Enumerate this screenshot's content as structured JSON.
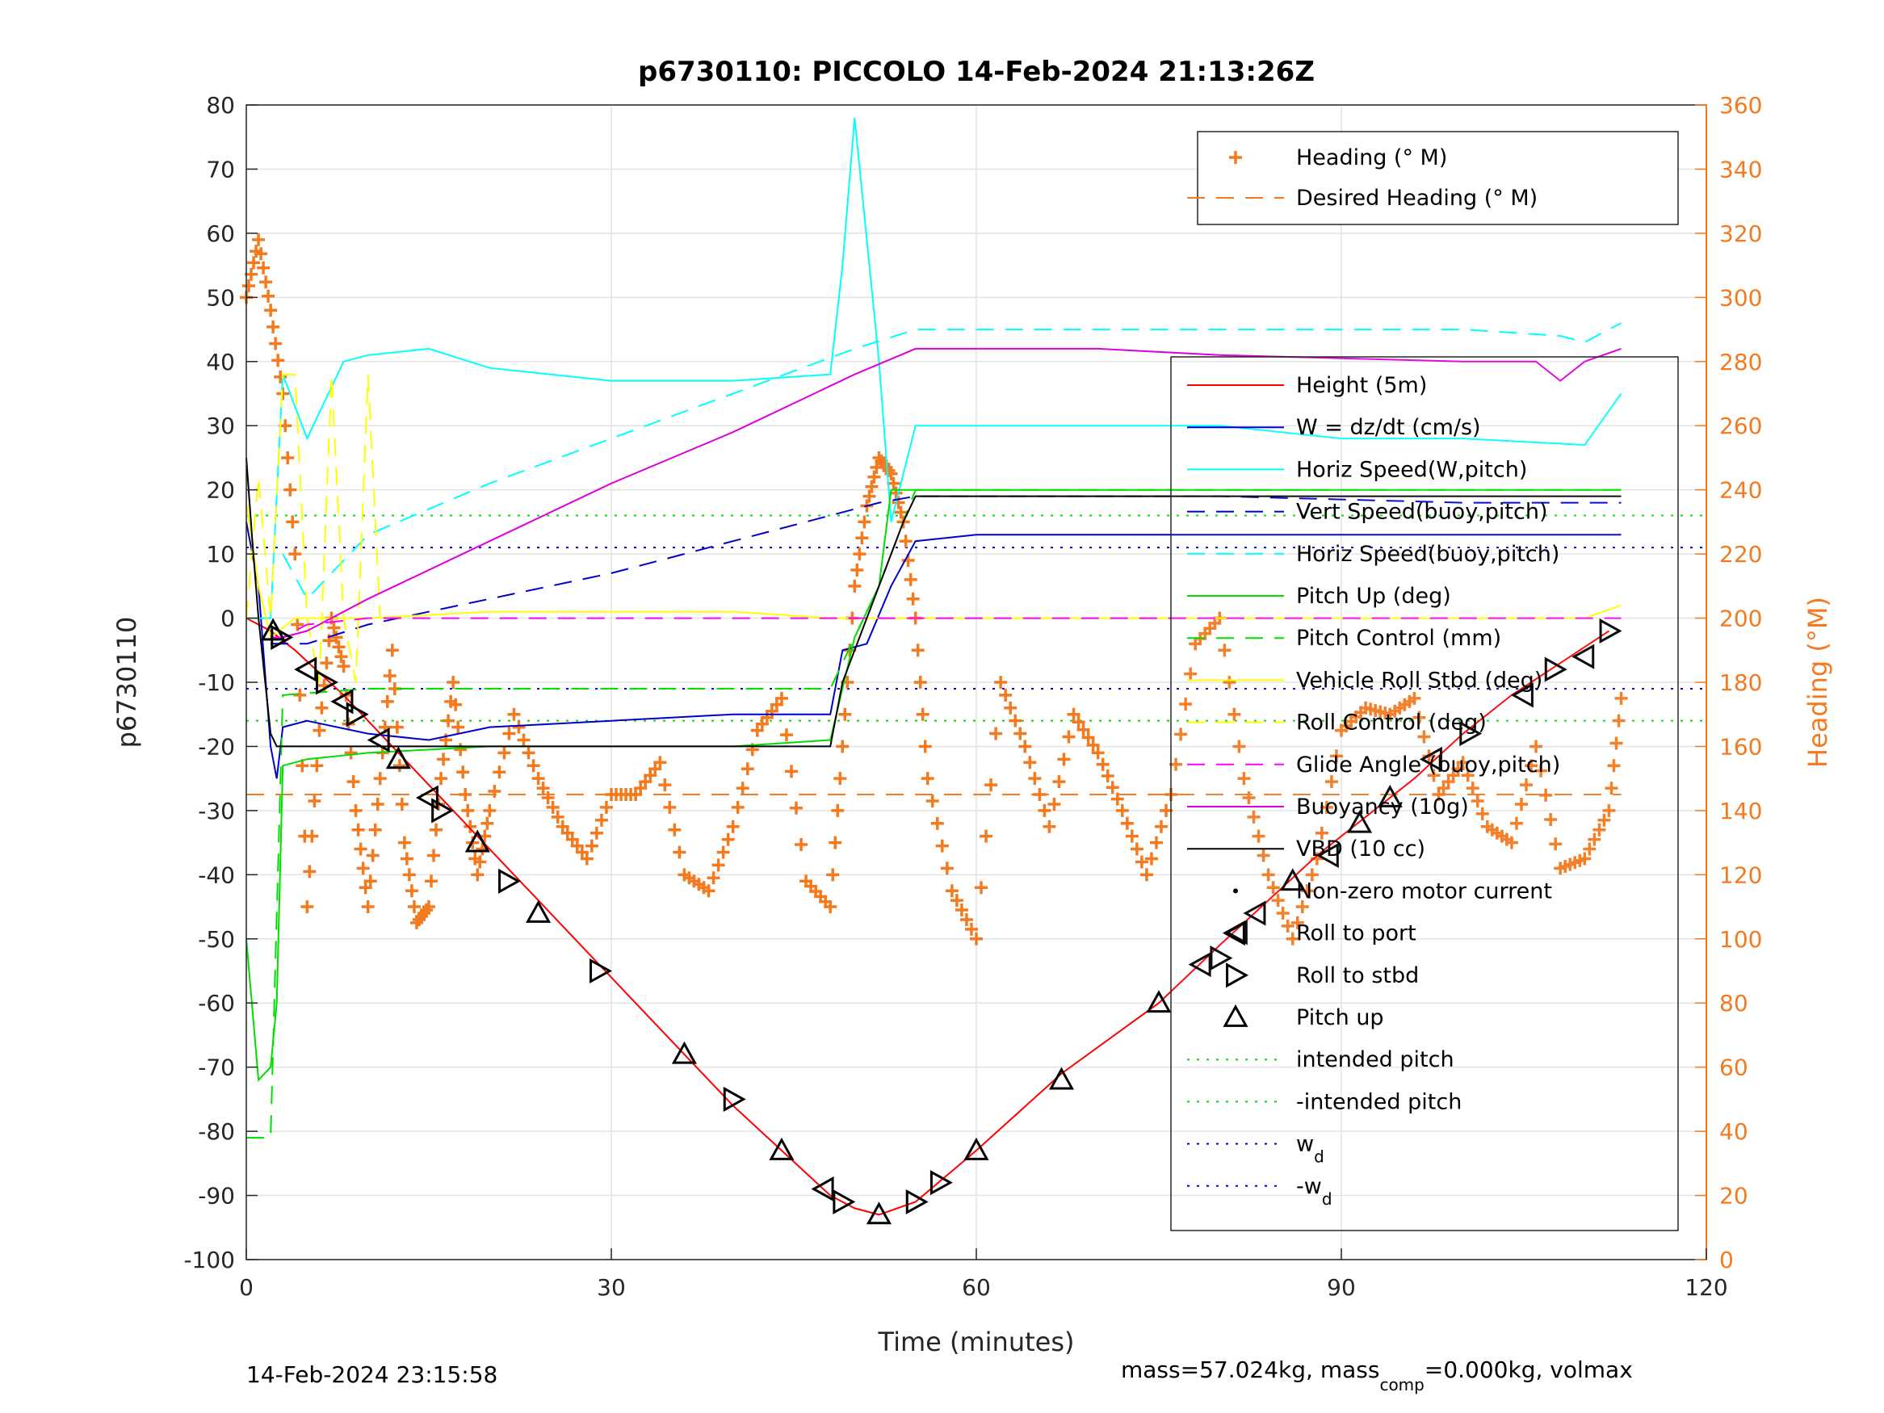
{
  "title": "p6730110: PICCOLO 14-Feb-2024 21:13:26Z",
  "footer_left": "14-Feb-2024 23:15:58",
  "footer_right": {
    "part1": "mass=57.024kg, mass",
    "sub1": "comp",
    "part2": "=0.000kg, volmax"
  },
  "colors": {
    "height": "#ff0000",
    "w": "#0000cc",
    "horiz_speed": "#00ffff",
    "vert_speed_buoy": "#0000cc",
    "pitch": "#00dd00",
    "roll": "#ffff00",
    "glide": "#ff00ff",
    "buoyancy": "#dd00dd",
    "vbd": "#000000",
    "heading": "#f47a20",
    "intended_pitch": "#00dd00",
    "wd": "#0000cc"
  },
  "chart_data": {
    "type": "line",
    "xlabel": "Time (minutes)",
    "ylabel": "p6730110",
    "ylabel_right": "Heading (°M)",
    "xlim": [
      0,
      120
    ],
    "ylim": [
      -100,
      80
    ],
    "ylim_right": [
      0,
      360
    ],
    "xticks": [
      0,
      30,
      60,
      90,
      120
    ],
    "yticks": [
      -100,
      -90,
      -80,
      -70,
      -60,
      -50,
      -40,
      -30,
      -20,
      -10,
      0,
      10,
      20,
      30,
      40,
      50,
      60,
      70,
      80
    ],
    "yticks_right": [
      0,
      20,
      40,
      60,
      80,
      100,
      120,
      140,
      160,
      180,
      200,
      220,
      240,
      260,
      280,
      300,
      320,
      340,
      360
    ],
    "grid": true,
    "legend_heading_placement": "top-right",
    "legend_main_placement": "right",
    "legend_heading": [
      {
        "label": "Heading (° M)",
        "key": "heading",
        "style": "plus"
      },
      {
        "label": "Desired Heading (° M)",
        "key": "heading",
        "style": "dash"
      }
    ],
    "legend_main": [
      {
        "label": "Height (5m)",
        "key": "height",
        "style": "solid"
      },
      {
        "label": "W = dz/dt (cm/s)",
        "key": "w",
        "style": "solid"
      },
      {
        "label": "Horiz Speed(W,pitch)",
        "key": "horiz_speed",
        "style": "solid"
      },
      {
        "label": "Vert Speed(buoy,pitch)",
        "key": "vert_speed_buoy",
        "style": "dash"
      },
      {
        "label": "Horiz Speed(buoy,pitch)",
        "key": "horiz_speed",
        "style": "dash"
      },
      {
        "label": "Pitch Up (deg)",
        "key": "pitch",
        "style": "solid"
      },
      {
        "label": "Pitch Control (mm)",
        "key": "pitch",
        "style": "dash"
      },
      {
        "label": "Vehicle Roll Stbd (deg)",
        "key": "roll",
        "style": "solid"
      },
      {
        "label": "Roll Control (deg)",
        "key": "roll",
        "style": "dash"
      },
      {
        "label": "Glide Angle (buoy,pitch)",
        "key": "glide",
        "style": "dash"
      },
      {
        "label": "Buoyancy (10g)",
        "key": "buoyancy",
        "style": "solid"
      },
      {
        "label": "VBD (10 cc)",
        "key": "vbd",
        "style": "solid"
      },
      {
        "label": "Non-zero motor current",
        "key": "vbd",
        "style": "dot"
      },
      {
        "label": "Roll to port",
        "key": "vbd",
        "style": "tri-left"
      },
      {
        "label": "Roll to stbd",
        "key": "vbd",
        "style": "tri-right"
      },
      {
        "label": "Pitch up",
        "key": "vbd",
        "style": "tri-up"
      },
      {
        "label": "intended pitch",
        "key": "intended_pitch",
        "style": "dotted"
      },
      {
        "label": "-intended pitch",
        "key": "intended_pitch",
        "style": "dotted"
      },
      {
        "label": "w",
        "sub": "d",
        "key": "wd",
        "style": "dotted"
      },
      {
        "label": "-w",
        "sub": "d",
        "key": "wd",
        "style": "dotted"
      }
    ],
    "series": [
      {
        "key": "height",
        "x": [
          0,
          2,
          4,
          8,
          12,
          16,
          20,
          24,
          29,
          36,
          40,
          44,
          48,
          50,
          52,
          55,
          60,
          67,
          75,
          80,
          84,
          88,
          92,
          96,
          100,
          104,
          108,
          112
        ],
        "y": [
          0,
          -2,
          -5,
          -12,
          -20,
          -28,
          -36,
          -44,
          -54,
          -68,
          -76,
          -83,
          -90,
          -92,
          -93,
          -91,
          -83,
          -71,
          -60,
          -51,
          -44,
          -37,
          -31,
          -25,
          -18,
          -12,
          -7,
          -2
        ]
      },
      {
        "key": "w",
        "x": [
          0,
          1,
          2,
          2.5,
          3,
          5,
          10,
          15,
          20,
          30,
          40,
          48,
          49,
          51,
          53,
          55,
          60,
          70,
          80,
          90,
          100,
          110,
          113
        ],
        "y": [
          15,
          5,
          -20,
          -25,
          -17,
          -16,
          -18,
          -19,
          -17,
          -16,
          -15,
          -15,
          -5,
          -4,
          5,
          12,
          13,
          13,
          13,
          13,
          13,
          13,
          13
        ]
      },
      {
        "key": "horiz_speed",
        "x": [
          0,
          2,
          3,
          5,
          8,
          10,
          15,
          20,
          30,
          40,
          48,
          49,
          50,
          52,
          53,
          55,
          60,
          70,
          80,
          90,
          100,
          110,
          113
        ],
        "y": [
          0,
          0,
          38,
          28,
          40,
          41,
          42,
          39,
          37,
          37,
          38,
          55,
          78,
          40,
          15,
          30,
          30,
          30,
          30,
          28,
          28,
          27,
          35
        ]
      },
      {
        "key": "vert_speed_buoy",
        "dash": "22 14",
        "x": [
          2,
          5,
          10,
          20,
          30,
          40,
          48,
          52,
          55,
          60,
          80,
          100,
          113
        ],
        "y": [
          -4,
          -4,
          -1,
          3,
          7,
          12,
          16,
          18,
          19,
          19,
          19,
          18,
          18
        ]
      },
      {
        "key": "horiz_speed",
        "dash": "22 14",
        "x": [
          3,
          5,
          10,
          20,
          30,
          40,
          50,
          55,
          60,
          80,
          100,
          108,
          110,
          113
        ],
        "y": [
          10,
          3,
          13,
          21,
          28,
          35,
          42,
          45,
          45,
          45,
          45,
          44,
          43,
          46
        ]
      },
      {
        "key": "pitch",
        "x": [
          0,
          1,
          2,
          2.5,
          3,
          5,
          10,
          20,
          30,
          40,
          48,
          50,
          52,
          53,
          55,
          60,
          80,
          100,
          110,
          113
        ],
        "y": [
          -50,
          -72,
          -70,
          -60,
          -23,
          -22,
          -21,
          -20,
          -20,
          -20,
          -19,
          -3,
          5,
          20,
          20,
          20,
          20,
          20,
          20,
          20
        ]
      },
      {
        "key": "pitch",
        "dash": "22 14",
        "x": [
          0,
          2,
          3,
          10,
          20,
          30,
          40,
          48,
          50,
          52,
          55,
          60,
          80,
          100,
          113
        ],
        "y": [
          -81,
          -81,
          -12,
          -11,
          -11,
          -11,
          -11,
          -11,
          -3,
          5,
          20,
          20,
          20,
          20,
          20
        ]
      },
      {
        "key": "roll",
        "x": [
          0,
          1,
          2,
          4,
          6,
          10,
          20,
          30,
          40,
          48,
          52,
          56,
          70,
          80,
          90,
          100,
          110,
          113
        ],
        "y": [
          18,
          5,
          -3,
          0,
          0,
          0,
          1,
          1,
          1,
          0,
          0,
          0,
          0,
          0,
          0,
          0,
          0,
          2
        ]
      },
      {
        "key": "roll",
        "dash": "22 14",
        "x": [
          0,
          1,
          2,
          3,
          4,
          5,
          6,
          7,
          8,
          9,
          10,
          11
        ],
        "y": [
          0,
          22,
          0,
          38,
          38,
          0,
          -10,
          38,
          0,
          -10,
          38,
          0
        ]
      },
      {
        "key": "glide",
        "dash": "22 14",
        "x": [
          2,
          3,
          5,
          10,
          30,
          50,
          60,
          80,
          100,
          113
        ],
        "y": [
          -3,
          -3,
          -1,
          0,
          0,
          0,
          0,
          0,
          0,
          0
        ]
      },
      {
        "key": "buoyancy",
        "x": [
          3,
          5,
          10,
          20,
          30,
          40,
          50,
          55,
          60,
          70,
          80,
          100,
          106,
          108,
          110,
          113
        ],
        "y": [
          -3,
          -2,
          3,
          12,
          21,
          29,
          38,
          42,
          42,
          42,
          41,
          40,
          40,
          37,
          40,
          42
        ]
      },
      {
        "key": "vbd",
        "x": [
          0,
          0.5,
          1,
          2,
          2.5,
          5,
          10,
          20,
          30,
          40,
          48,
          49,
          50,
          52,
          54,
          55,
          60,
          80,
          100,
          110,
          113
        ],
        "y": [
          25,
          12,
          0,
          -18,
          -20,
          -20,
          -20,
          -20,
          -20,
          -20,
          -20,
          -10,
          -5,
          5,
          15,
          19,
          19,
          19,
          19,
          19,
          19
        ]
      }
    ],
    "reference_lines": [
      {
        "key": "intended_pitch",
        "y": 16
      },
      {
        "key": "intended_pitch",
        "y": -16
      },
      {
        "key": "wd",
        "y": 11
      },
      {
        "key": "wd",
        "y": -11
      }
    ],
    "desired_heading": {
      "value": 145,
      "xrange": [
        0,
        113
      ]
    },
    "heading_series": {
      "x": [
        0,
        1,
        2,
        3,
        4,
        5,
        6,
        7,
        8,
        9,
        10,
        11,
        12,
        13,
        14,
        15,
        16,
        17,
        18,
        19,
        20,
        22,
        24,
        26,
        28,
        30,
        32,
        34,
        36,
        38,
        40,
        42,
        44,
        46,
        48,
        49,
        50,
        51,
        52,
        53,
        54,
        55,
        56,
        58,
        60,
        62,
        64,
        66,
        68,
        70,
        72,
        74,
        76,
        78,
        80,
        82,
        84,
        86,
        88,
        90,
        92,
        94,
        96,
        98,
        100,
        102,
        104,
        106,
        108,
        110,
        112,
        113
      ],
      "y": [
        300,
        318,
        296,
        270,
        220,
        110,
        165,
        200,
        185,
        140,
        110,
        150,
        190,
        130,
        105,
        110,
        150,
        180,
        145,
        120,
        140,
        170,
        150,
        135,
        125,
        145,
        145,
        155,
        120,
        115,
        135,
        165,
        175,
        118,
        110,
        160,
        210,
        235,
        250,
        245,
        230,
        200,
        150,
        115,
        100,
        180,
        160,
        135,
        170,
        158,
        140,
        120,
        145,
        192,
        200,
        150,
        120,
        100,
        125,
        165,
        172,
        170,
        175,
        145,
        155,
        135,
        130,
        160,
        122,
        125,
        140,
        175
      ]
    },
    "markers": [
      {
        "x": 2.2,
        "y": -2,
        "type": "tri-up"
      },
      {
        "x": 2.8,
        "y": -3,
        "type": "tri-right"
      },
      {
        "x": 5,
        "y": -8,
        "type": "tri-left"
      },
      {
        "x": 6.5,
        "y": -10,
        "type": "tri-right"
      },
      {
        "x": 8,
        "y": -13,
        "type": "tri-left"
      },
      {
        "x": 9,
        "y": -15,
        "type": "tri-right"
      },
      {
        "x": 11,
        "y": -19,
        "type": "tri-left"
      },
      {
        "x": 12.5,
        "y": -22,
        "type": "tri-up"
      },
      {
        "x": 15,
        "y": -28,
        "type": "tri-left"
      },
      {
        "x": 16,
        "y": -30,
        "type": "tri-right"
      },
      {
        "x": 19,
        "y": -35,
        "type": "tri-up"
      },
      {
        "x": 21.5,
        "y": -41,
        "type": "tri-right"
      },
      {
        "x": 24,
        "y": -46,
        "type": "tri-up"
      },
      {
        "x": 29,
        "y": -55,
        "type": "tri-right"
      },
      {
        "x": 36,
        "y": -68,
        "type": "tri-up"
      },
      {
        "x": 40,
        "y": -75,
        "type": "tri-right"
      },
      {
        "x": 44,
        "y": -83,
        "type": "tri-up"
      },
      {
        "x": 47.5,
        "y": -89,
        "type": "tri-left"
      },
      {
        "x": 49,
        "y": -91,
        "type": "tri-right"
      },
      {
        "x": 52,
        "y": -93,
        "type": "tri-up"
      },
      {
        "x": 55,
        "y": -91,
        "type": "tri-right"
      },
      {
        "x": 57,
        "y": -88,
        "type": "tri-right"
      },
      {
        "x": 60,
        "y": -83,
        "type": "tri-up"
      },
      {
        "x": 67,
        "y": -72,
        "type": "tri-up"
      },
      {
        "x": 75,
        "y": -60,
        "type": "tri-up"
      },
      {
        "x": 78.5,
        "y": -54,
        "type": "tri-left"
      },
      {
        "x": 80,
        "y": -53,
        "type": "tri-right"
      },
      {
        "x": 81.5,
        "y": -49,
        "type": "tri-left"
      },
      {
        "x": 83,
        "y": -46,
        "type": "tri-left"
      },
      {
        "x": 86,
        "y": -41,
        "type": "tri-up"
      },
      {
        "x": 89,
        "y": -37,
        "type": "tri-left"
      },
      {
        "x": 91.5,
        "y": -32,
        "type": "tri-up"
      },
      {
        "x": 94,
        "y": -28,
        "type": "tri-up"
      },
      {
        "x": 97.5,
        "y": -22,
        "type": "tri-left"
      },
      {
        "x": 100.5,
        "y": -18,
        "type": "tri-right"
      },
      {
        "x": 105,
        "y": -12,
        "type": "tri-left"
      },
      {
        "x": 107.5,
        "y": -8,
        "type": "tri-right"
      },
      {
        "x": 110,
        "y": -6,
        "type": "tri-left"
      },
      {
        "x": 112,
        "y": -2,
        "type": "tri-right"
      }
    ]
  }
}
